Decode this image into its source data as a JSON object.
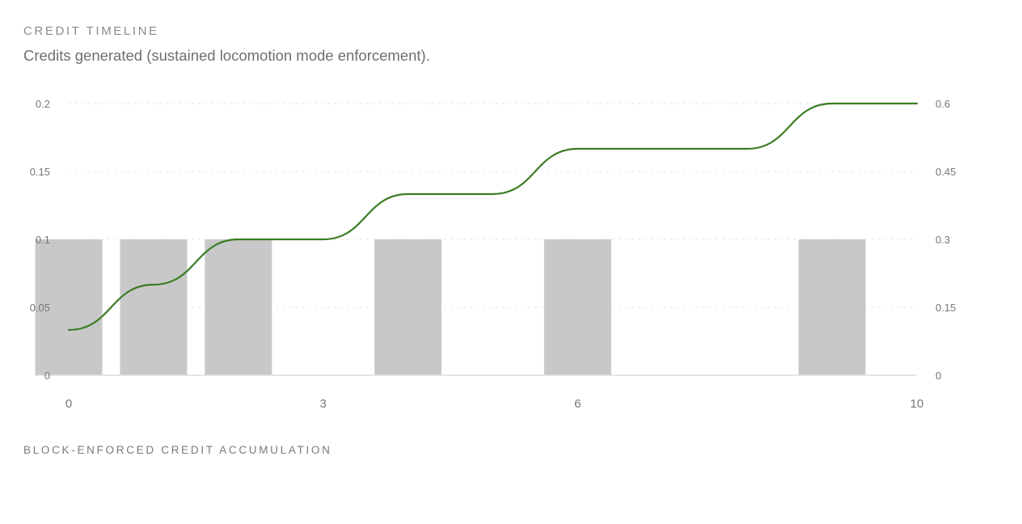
{
  "header": {
    "title": "CREDIT TIMELINE",
    "subtitle": "Credits generated (sustained locomotion mode enforcement)."
  },
  "footer": {
    "title": "BLOCK-ENFORCED CREDIT ACCUMULATION"
  },
  "colors": {
    "bar": "#c8c8c8",
    "line": "#3a7d22",
    "grid": "#e6e6e6",
    "axis": "#dddddd"
  },
  "chart_data": {
    "type": "bar",
    "title": "",
    "xlabel": "",
    "ylabel": "",
    "xlim": [
      0,
      10
    ],
    "ylim_left": [
      0,
      0.2
    ],
    "ylim_right": [
      0,
      0.6
    ],
    "grid": true,
    "x_ticks": [
      "0",
      "3",
      "6",
      "10"
    ],
    "y_left_ticks": [
      "0",
      "0.05",
      "0.1",
      "0.15",
      "0.2"
    ],
    "y_right_ticks": [
      "0",
      "0.15",
      "0.3",
      "0.45",
      "0.6"
    ],
    "series": [
      {
        "type": "bar",
        "axis": "left",
        "bars": [
          {
            "x": 0,
            "value": 0.1
          },
          {
            "x": 1,
            "value": 0.1
          },
          {
            "x": 2,
            "value": 0.1
          },
          {
            "x": 4,
            "value": 0.1
          },
          {
            "x": 6,
            "value": 0.1
          },
          {
            "x": 9,
            "value": 0.1
          }
        ]
      },
      {
        "type": "line",
        "axis": "right",
        "x": [
          0,
          1,
          2,
          3,
          4,
          5,
          6,
          7,
          8,
          9,
          10
        ],
        "values": [
          0.1,
          0.2,
          0.3,
          0.3,
          0.4,
          0.4,
          0.5,
          0.5,
          0.5,
          0.6,
          0.6
        ]
      }
    ]
  }
}
